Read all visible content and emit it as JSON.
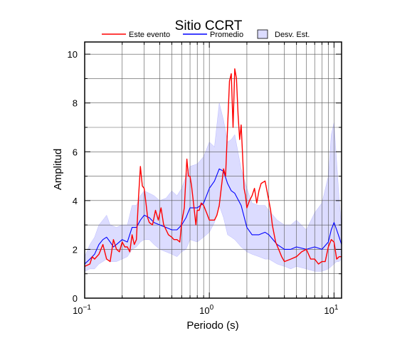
{
  "chart_data": {
    "type": "line",
    "title": "Sitio CCRT",
    "xlabel": "Periodo (s)",
    "ylabel": "Amplitud",
    "x_scale": "log",
    "xlim": [
      0.1,
      11.5
    ],
    "ylim": [
      0,
      10.5
    ],
    "grid": true,
    "legend_placement": "top",
    "x_ticks": [
      {
        "value": 0.1,
        "base": "10",
        "exp": "−1"
      },
      {
        "value": 1,
        "base": "10",
        "exp": "0"
      },
      {
        "value": 10,
        "base": "10",
        "exp": "1"
      }
    ],
    "y_ticks": [
      0,
      2,
      4,
      6,
      8,
      10
    ],
    "legend": {
      "este": "Este evento",
      "promedio": "Promedio",
      "desv": "Desv. Est."
    },
    "colors": {
      "este": "#ff0000",
      "promedio": "#0000ff",
      "band_fill": "#dcdcff",
      "band_stroke": "#7070ff"
    },
    "series": [
      {
        "key": "este",
        "x": [
          0.1,
          0.11,
          0.115,
          0.12,
          0.13,
          0.14,
          0.15,
          0.16,
          0.17,
          0.18,
          0.19,
          0.2,
          0.21,
          0.22,
          0.23,
          0.24,
          0.25,
          0.26,
          0.27,
          0.28,
          0.29,
          0.3,
          0.31,
          0.32,
          0.33,
          0.35,
          0.37,
          0.39,
          0.41,
          0.43,
          0.45,
          0.47,
          0.5,
          0.52,
          0.55,
          0.58,
          0.6,
          0.63,
          0.66,
          0.68,
          0.7,
          0.72,
          0.75,
          0.78,
          0.8,
          0.83,
          0.86,
          0.9,
          0.95,
          1.0,
          1.05,
          1.1,
          1.15,
          1.2,
          1.3,
          1.35,
          1.4,
          1.45,
          1.5,
          1.55,
          1.6,
          1.65,
          1.7,
          1.75,
          1.8,
          1.85,
          1.9,
          1.95,
          2.0,
          2.1,
          2.2,
          2.3,
          2.4,
          2.5,
          2.6,
          2.8,
          3.0,
          3.1,
          3.2,
          3.4,
          3.6,
          3.8,
          4.0,
          4.5,
          5.0,
          5.5,
          6.0,
          6.5,
          7.0,
          7.5,
          8.0,
          8.5,
          9.0,
          9.5,
          10.0,
          10.5,
          11.0,
          11.5
        ],
        "values": [
          1.3,
          1.4,
          1.7,
          1.6,
          1.8,
          2.2,
          1.6,
          1.5,
          2.4,
          2.0,
          1.9,
          2.3,
          2.1,
          2.1,
          1.9,
          2.6,
          2.2,
          2.4,
          4.1,
          5.4,
          4.6,
          4.5,
          3.9,
          3.3,
          3.1,
          3.0,
          3.6,
          3.2,
          3.7,
          3.0,
          2.8,
          2.6,
          2.5,
          2.4,
          2.4,
          2.3,
          3.1,
          3.7,
          5.7,
          5.0,
          5.0,
          4.6,
          3.8,
          3.0,
          3.6,
          3.6,
          3.9,
          3.8,
          3.5,
          3.2,
          3.2,
          3.2,
          3.4,
          3.8,
          5.3,
          5.0,
          7.0,
          8.9,
          9.2,
          7.0,
          9.4,
          9.0,
          7.5,
          6.5,
          7.1,
          5.8,
          4.5,
          4.2,
          3.7,
          4.0,
          4.2,
          4.5,
          3.9,
          4.4,
          4.7,
          4.8,
          4.0,
          3.6,
          3.0,
          2.3,
          2.0,
          1.7,
          1.5,
          1.6,
          1.7,
          1.9,
          2.0,
          1.6,
          1.6,
          1.4,
          1.5,
          1.5,
          2.1,
          2.4,
          2.3,
          1.6,
          1.7,
          1.7
        ]
      },
      {
        "key": "promedio",
        "x": [
          0.1,
          0.11,
          0.12,
          0.13,
          0.14,
          0.15,
          0.16,
          0.17,
          0.18,
          0.2,
          0.22,
          0.24,
          0.26,
          0.28,
          0.3,
          0.33,
          0.36,
          0.4,
          0.45,
          0.5,
          0.55,
          0.6,
          0.65,
          0.7,
          0.8,
          0.9,
          1.0,
          1.1,
          1.2,
          1.3,
          1.4,
          1.5,
          1.6,
          1.8,
          2.0,
          2.2,
          2.5,
          2.8,
          3.0,
          3.5,
          4.0,
          4.5,
          5.0,
          6.0,
          7.0,
          8.0,
          9.0,
          9.5,
          10.0,
          10.5,
          11.0,
          11.5
        ],
        "values": [
          1.4,
          1.6,
          1.8,
          2.2,
          2.4,
          2.5,
          2.3,
          2.1,
          2.2,
          2.4,
          2.3,
          2.9,
          2.9,
          3.2,
          3.4,
          3.3,
          3.1,
          3.0,
          2.9,
          2.8,
          2.8,
          3.0,
          3.3,
          3.7,
          3.7,
          3.9,
          4.5,
          4.8,
          5.3,
          5.2,
          4.7,
          4.4,
          4.3,
          3.8,
          2.9,
          2.6,
          2.6,
          2.7,
          2.6,
          2.2,
          2.0,
          2.0,
          2.1,
          2.0,
          2.1,
          2.0,
          2.3,
          2.8,
          3.1,
          2.8,
          2.5,
          2.2
        ]
      },
      {
        "key": "desv_upper",
        "x": [
          0.1,
          0.11,
          0.12,
          0.13,
          0.14,
          0.15,
          0.16,
          0.18,
          0.2,
          0.22,
          0.24,
          0.26,
          0.28,
          0.3,
          0.33,
          0.36,
          0.4,
          0.45,
          0.5,
          0.55,
          0.6,
          0.65,
          0.7,
          0.8,
          0.9,
          1.0,
          1.1,
          1.2,
          1.3,
          1.4,
          1.5,
          1.6,
          1.8,
          2.0,
          2.2,
          2.5,
          2.8,
          3.0,
          3.5,
          4.0,
          4.5,
          5.0,
          6.0,
          7.0,
          8.0,
          9.0,
          9.5,
          10.0,
          10.5,
          11.0,
          11.5
        ],
        "values": [
          1.7,
          2.2,
          2.5,
          3.0,
          3.2,
          3.4,
          3.0,
          2.9,
          3.0,
          3.0,
          3.8,
          3.8,
          4.2,
          4.4,
          4.3,
          4.2,
          4.0,
          4.1,
          4.4,
          4.2,
          4.5,
          5.0,
          5.4,
          5.5,
          5.8,
          6.4,
          6.2,
          8.0,
          7.3,
          6.4,
          6.5,
          6.7,
          5.3,
          4.5,
          3.9,
          3.8,
          3.8,
          3.6,
          3.2,
          3.0,
          3.0,
          3.2,
          2.8,
          3.5,
          3.9,
          5.0,
          6.7,
          7.2,
          5.6,
          4.1,
          2.9
        ]
      },
      {
        "key": "desv_lower",
        "x": [
          0.1,
          0.11,
          0.12,
          0.13,
          0.14,
          0.15,
          0.16,
          0.18,
          0.2,
          0.22,
          0.24,
          0.26,
          0.28,
          0.3,
          0.33,
          0.36,
          0.4,
          0.45,
          0.5,
          0.55,
          0.6,
          0.65,
          0.7,
          0.8,
          0.9,
          1.0,
          1.1,
          1.2,
          1.3,
          1.4,
          1.5,
          1.6,
          1.8,
          2.0,
          2.2,
          2.5,
          2.8,
          3.0,
          3.5,
          4.0,
          4.5,
          5.0,
          6.0,
          7.0,
          8.0,
          9.0,
          9.5,
          10.0,
          10.5,
          11.0,
          11.5
        ],
        "values": [
          1.1,
          1.2,
          1.2,
          1.4,
          1.5,
          1.6,
          1.5,
          1.5,
          1.6,
          1.7,
          2.0,
          2.1,
          2.3,
          2.4,
          2.4,
          2.2,
          2.0,
          1.9,
          1.8,
          1.7,
          1.9,
          2.0,
          2.4,
          2.3,
          2.5,
          2.7,
          3.1,
          3.8,
          3.3,
          2.6,
          2.5,
          2.4,
          2.1,
          1.9,
          1.8,
          1.7,
          1.6,
          1.6,
          1.4,
          1.3,
          1.2,
          1.3,
          1.2,
          1.1,
          1.1,
          1.2,
          1.3,
          1.4,
          1.5,
          1.5,
          1.6
        ]
      }
    ]
  }
}
